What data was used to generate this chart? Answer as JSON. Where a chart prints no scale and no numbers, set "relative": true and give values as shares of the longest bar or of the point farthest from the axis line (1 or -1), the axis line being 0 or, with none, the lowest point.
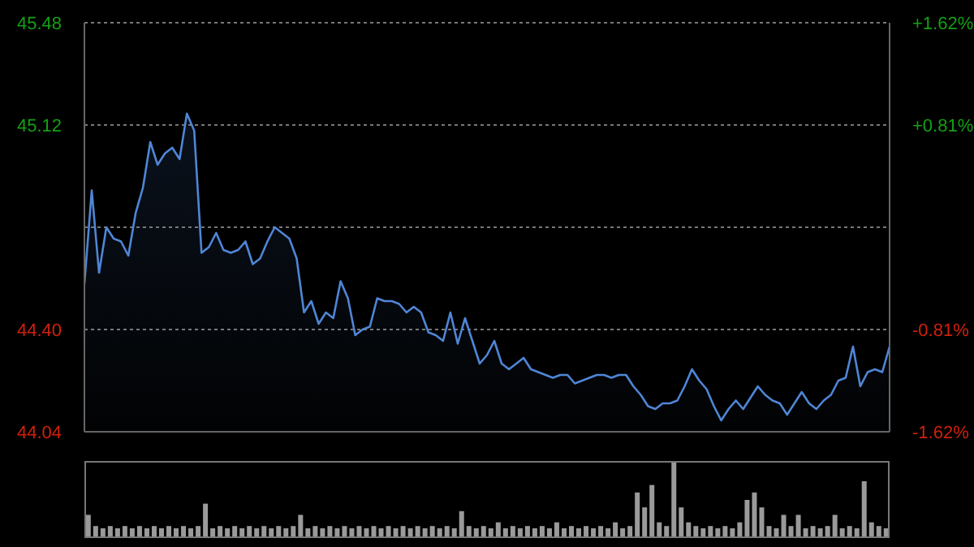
{
  "chart_data": [
    {
      "type": "area",
      "categories": [
        null,
        null,
        null,
        null,
        null,
        null,
        null,
        null,
        null,
        null,
        null,
        null,
        null,
        null,
        null,
        null,
        null,
        null,
        null,
        null,
        null,
        null,
        null,
        null,
        null,
        null,
        null,
        null,
        null,
        null,
        null,
        null,
        null,
        null,
        null,
        null,
        null,
        null,
        null,
        null,
        null,
        null,
        null,
        null,
        null,
        null,
        null,
        null,
        null,
        null,
        null,
        null,
        null,
        null,
        null,
        null,
        null,
        null,
        null,
        null,
        null,
        null,
        null,
        null,
        null,
        null,
        null,
        null,
        null,
        null,
        null,
        null,
        null,
        null,
        null,
        null,
        null,
        null,
        null,
        null,
        null,
        null,
        null,
        null,
        null,
        null,
        null,
        null,
        null,
        null,
        null,
        null,
        null,
        null,
        null,
        null,
        null,
        null,
        null,
        null,
        null,
        null,
        null,
        null,
        null,
        null,
        null,
        null,
        null,
        null,
        null
      ],
      "series": [
        {
          "color": "#4f86d6",
          "values": [
            44.56,
            44.89,
            44.6,
            44.76,
            44.72,
            44.71,
            44.66,
            44.81,
            44.9,
            45.06,
            44.98,
            45.02,
            45.04,
            45.0,
            45.16,
            45.1,
            44.67,
            44.69,
            44.74,
            44.68,
            44.67,
            44.68,
            44.71,
            44.63,
            44.65,
            44.71,
            44.76,
            44.74,
            44.72,
            44.65,
            44.46,
            44.5,
            44.42,
            44.46,
            44.44,
            44.57,
            44.51,
            44.38,
            44.4,
            44.41,
            44.51,
            44.5,
            44.5,
            44.49,
            44.46,
            44.48,
            44.46,
            44.39,
            44.38,
            44.36,
            44.46,
            44.35,
            44.44,
            44.36,
            44.28,
            44.31,
            44.36,
            44.28,
            44.26,
            44.28,
            44.3,
            44.26,
            44.25,
            44.24,
            44.23,
            44.24,
            44.24,
            44.21,
            44.22,
            44.23,
            44.24,
            44.24,
            44.23,
            44.24,
            44.24,
            44.2,
            44.17,
            44.13,
            44.12,
            44.14,
            44.14,
            44.15,
            44.2,
            44.26,
            44.22,
            44.19,
            44.13,
            44.08,
            44.12,
            44.15,
            44.12,
            44.16,
            44.2,
            44.17,
            44.15,
            44.14,
            44.1,
            44.14,
            44.18,
            44.14,
            44.12,
            44.15,
            44.17,
            44.22,
            44.23,
            44.34,
            44.2,
            44.25,
            44.26,
            44.25,
            44.34
          ]
        }
      ],
      "ylim": [
        44.04,
        45.48
      ],
      "yticks": [
        44.04,
        {
          "value": 44.4,
          "label": "44.40"
        },
        {
          "value": 44.76,
          "label": null
        },
        45.12,
        45.48
      ],
      "y2lim": [
        -1.62,
        1.62
      ],
      "y2ticks": [
        {
          "value": -1.62,
          "label": "-1.62%"
        },
        {
          "value": -0.81,
          "label": "-0.81%"
        },
        {
          "value": 0,
          "label": null
        },
        {
          "value": 0.81,
          "label": "+0.81%"
        },
        {
          "value": 1.62,
          "label": "+1.62%"
        }
      ],
      "grid": true,
      "tick_labels": "y"
    },
    {
      "type": "bar",
      "relative": true,
      "tick_labels": false,
      "categories": [
        null,
        null,
        null,
        null,
        null,
        null,
        null,
        null,
        null,
        null,
        null,
        null,
        null,
        null,
        null,
        null,
        null,
        null,
        null,
        null,
        null,
        null,
        null,
        null,
        null,
        null,
        null,
        null,
        null,
        null,
        null,
        null,
        null,
        null,
        null,
        null,
        null,
        null,
        null,
        null,
        null,
        null,
        null,
        null,
        null,
        null,
        null,
        null,
        null,
        null,
        null,
        null,
        null,
        null,
        null,
        null,
        null,
        null,
        null,
        null,
        null,
        null,
        null,
        null,
        null,
        null,
        null,
        null,
        null,
        null,
        null,
        null,
        null,
        null,
        null,
        null,
        null,
        null,
        null,
        null,
        null,
        null,
        null,
        null,
        null,
        null,
        null,
        null,
        null,
        null,
        null,
        null,
        null,
        null,
        null,
        null,
        null,
        null,
        null,
        null,
        null,
        null,
        null,
        null,
        null,
        null,
        null,
        null,
        null,
        null
      ],
      "series": [
        {
          "color": "#9a9a9a",
          "values": [
            0.3,
            0.15,
            0.12,
            0.15,
            0.12,
            0.15,
            0.12,
            0.15,
            0.12,
            0.15,
            0.12,
            0.15,
            0.12,
            0.15,
            0.12,
            0.15,
            0.45,
            0.12,
            0.15,
            0.12,
            0.15,
            0.12,
            0.15,
            0.12,
            0.15,
            0.12,
            0.15,
            0.12,
            0.15,
            0.3,
            0.12,
            0.15,
            0.12,
            0.15,
            0.12,
            0.15,
            0.12,
            0.15,
            0.12,
            0.15,
            0.12,
            0.15,
            0.12,
            0.15,
            0.12,
            0.15,
            0.12,
            0.15,
            0.12,
            0.15,
            0.12,
            0.35,
            0.15,
            0.12,
            0.15,
            0.12,
            0.2,
            0.12,
            0.15,
            0.12,
            0.15,
            0.12,
            0.15,
            0.12,
            0.2,
            0.12,
            0.15,
            0.12,
            0.15,
            0.12,
            0.15,
            0.12,
            0.2,
            0.12,
            0.15,
            0.6,
            0.4,
            0.7,
            0.2,
            0.15,
            1,
            0.4,
            0.2,
            0.15,
            0.12,
            0.15,
            0.12,
            0.15,
            0.12,
            0.2,
            0.5,
            0.6,
            0.4,
            0.15,
            0.12,
            0.3,
            0.15,
            0.3,
            0.12,
            0.15,
            0.12,
            0.15,
            0.3,
            0.12,
            0.15,
            0.12,
            0.75,
            0.2,
            0.15,
            0.12
          ]
        }
      ]
    }
  ]
}
